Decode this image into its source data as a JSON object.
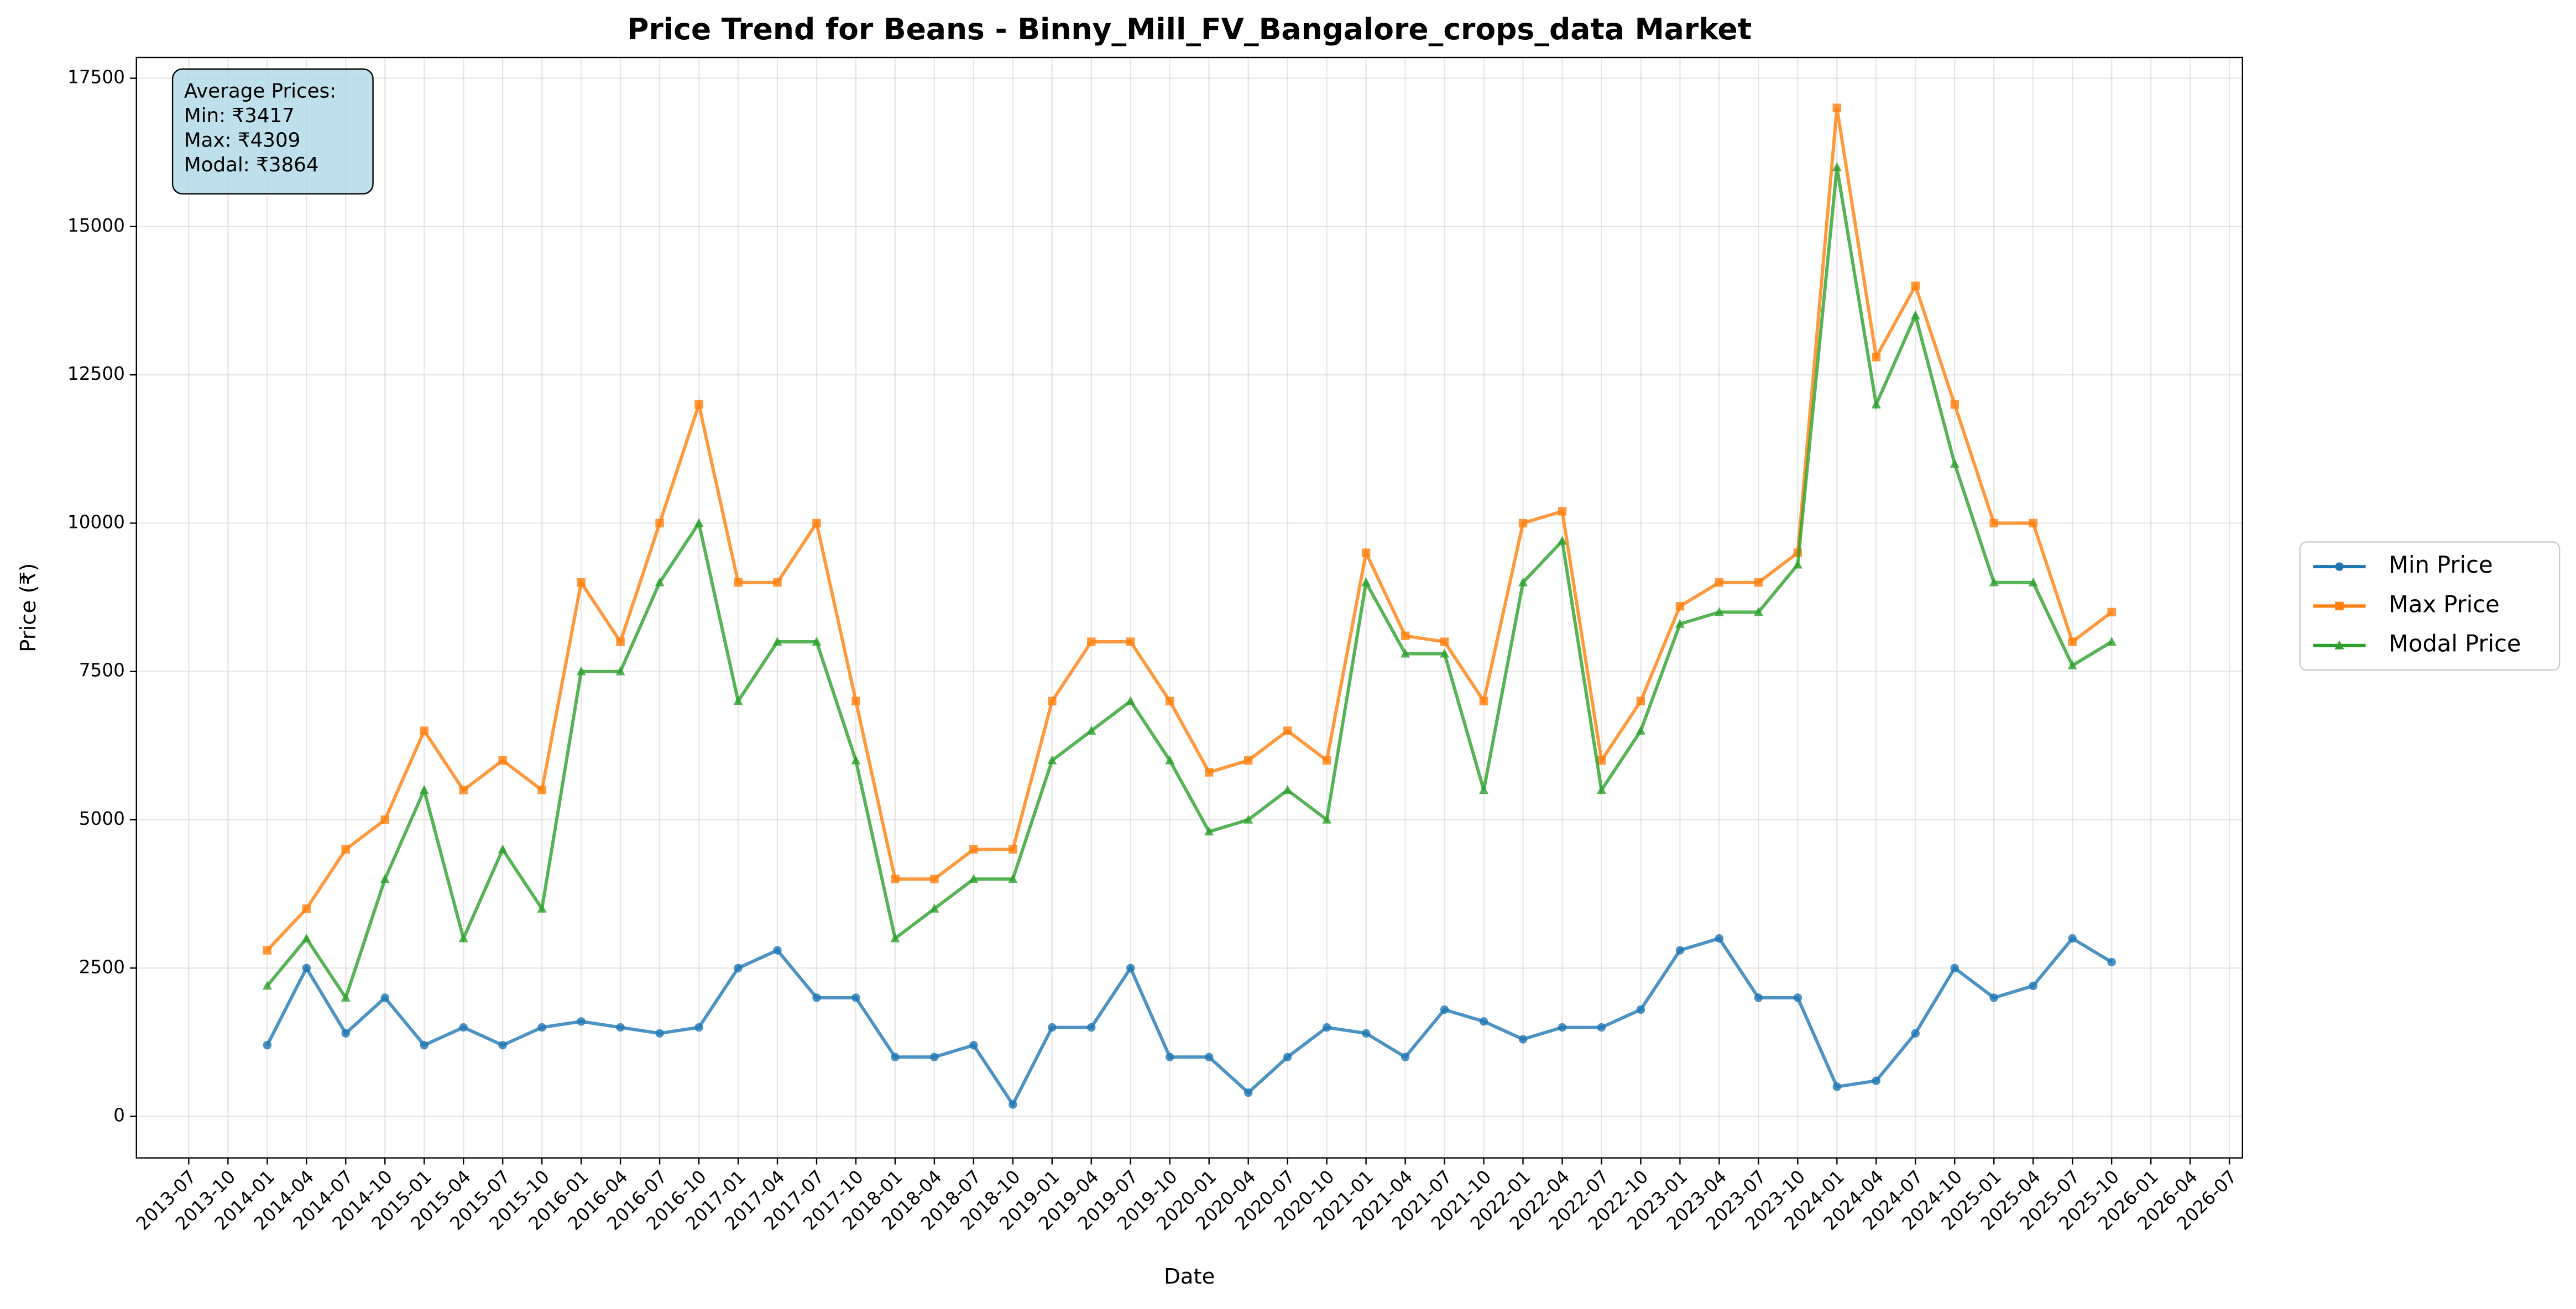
{
  "chart_data": {
    "type": "line",
    "title": "Price Trend for Beans - Binny_Mill_FV_Bangalore_crops_data Market",
    "x_label": "Date",
    "y_label": "Price (₹)",
    "annotation": [
      "Average Prices:",
      "Min: ₹3417",
      "Max: ₹4309",
      "Modal: ₹3864"
    ],
    "x": [
      "2014-01",
      "2014-04",
      "2014-07",
      "2014-10",
      "2015-01",
      "2015-04",
      "2015-07",
      "2015-10",
      "2016-01",
      "2016-04",
      "2016-07",
      "2016-10",
      "2017-01",
      "2017-04",
      "2017-07",
      "2017-10",
      "2018-01",
      "2018-04",
      "2018-07",
      "2018-10",
      "2019-01",
      "2019-04",
      "2019-07",
      "2019-10",
      "2020-01",
      "2020-04",
      "2020-07",
      "2020-10",
      "2021-01",
      "2021-04",
      "2021-07",
      "2021-10",
      "2022-01",
      "2022-04",
      "2022-07",
      "2022-10",
      "2023-01",
      "2023-04",
      "2023-07",
      "2023-10",
      "2024-01",
      "2024-04",
      "2024-07",
      "2024-10",
      "2025-01",
      "2025-04",
      "2025-07",
      "2025-10"
    ],
    "series": [
      {
        "name": "Min Price",
        "color": "#1f77b4",
        "marker": "circle",
        "values": [
          1200,
          2500,
          1400,
          2000,
          1200,
          1500,
          1200,
          1500,
          1600,
          1500,
          1400,
          1500,
          2500,
          2800,
          2000,
          2000,
          1000,
          1000,
          1200,
          200,
          1500,
          1500,
          2500,
          1000,
          1000,
          400,
          1000,
          1500,
          1400,
          1000,
          1800,
          1600,
          1300,
          1500,
          1500,
          1800,
          2800,
          3000,
          2000,
          2000,
          500,
          600,
          1400,
          2500,
          2000,
          2200,
          3000,
          2600
        ]
      },
      {
        "name": "Max Price",
        "color": "#ff7f0e",
        "marker": "square",
        "values": [
          2800,
          3500,
          4500,
          5000,
          6500,
          5500,
          6000,
          5500,
          9000,
          8000,
          10000,
          12000,
          9000,
          9000,
          10000,
          7000,
          4000,
          4000,
          4500,
          4500,
          7000,
          8000,
          8000,
          7000,
          5800,
          6000,
          6500,
          6000,
          9500,
          8100,
          8000,
          7000,
          10000,
          10200,
          6000,
          7000,
          8600,
          9000,
          9000,
          9500,
          17000,
          12800,
          14000,
          12000,
          10000,
          10000,
          8000,
          8500
        ]
      },
      {
        "name": "Modal Price",
        "color": "#2ca02c",
        "marker": "triangle",
        "values": [
          2200,
          3000,
          2000,
          4000,
          5500,
          3000,
          4500,
          3500,
          7500,
          7500,
          9000,
          10000,
          7000,
          8000,
          8000,
          6000,
          3000,
          3500,
          4000,
          4000,
          6000,
          6500,
          7000,
          6000,
          4800,
          5000,
          5500,
          5000,
          9000,
          7800,
          7800,
          5500,
          9000,
          9700,
          5500,
          6500,
          8300,
          8500,
          8500,
          9300,
          16000,
          12000,
          13500,
          11000,
          9000,
          9000,
          7600,
          8000
        ]
      }
    ],
    "xlim": [
      "2013-03",
      "2026-08"
    ],
    "xticks": [
      "2013-07",
      "2013-10",
      "2014-01",
      "2014-04",
      "2014-07",
      "2014-10",
      "2015-01",
      "2015-04",
      "2015-07",
      "2015-10",
      "2016-01",
      "2016-04",
      "2016-07",
      "2016-10",
      "2017-01",
      "2017-04",
      "2017-07",
      "2017-10",
      "2018-01",
      "2018-04",
      "2018-07",
      "2018-10",
      "2019-01",
      "2019-04",
      "2019-07",
      "2019-10",
      "2020-01",
      "2020-04",
      "2020-07",
      "2020-10",
      "2021-01",
      "2021-04",
      "2021-07",
      "2021-10",
      "2022-01",
      "2022-04",
      "2022-07",
      "2022-10",
      "2023-01",
      "2023-04",
      "2023-07",
      "2023-10",
      "2024-01",
      "2024-04",
      "2024-07",
      "2024-10",
      "2025-01",
      "2025-04",
      "2025-07",
      "2025-10",
      "2026-01",
      "2026-04",
      "2026-07"
    ],
    "ylim": [
      -700,
      17850
    ],
    "yticks": [
      0,
      2500,
      5000,
      7500,
      10000,
      12500,
      15000,
      17500
    ],
    "grid": true,
    "legend": "right"
  }
}
